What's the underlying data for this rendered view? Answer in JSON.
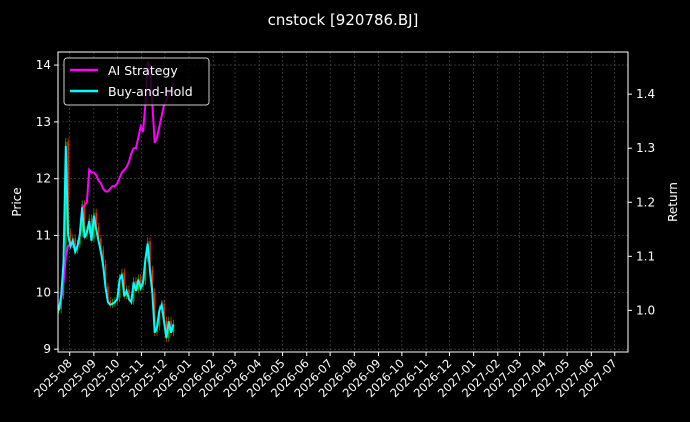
{
  "chart_data": {
    "type": "line",
    "title": "cnstock [920786.BJ]",
    "ylabel": "Price",
    "y2label": "Return",
    "ylim": [
      8.95,
      14.23
    ],
    "y2lim": [
      0.923,
      1.478
    ],
    "yticks": [
      9,
      10,
      11,
      12,
      13,
      14
    ],
    "y2ticks": [
      "1.0",
      "1.1",
      "1.2",
      "1.3",
      "1.4"
    ],
    "xlim": [
      "2025-07-17",
      "2027-07-18"
    ],
    "xticks": [
      "2025-08",
      "2025-09",
      "2025-10",
      "2025-11",
      "2025-12",
      "2026-01",
      "2026-02",
      "2026-03",
      "2026-04",
      "2026-05",
      "2026-06",
      "2026-07",
      "2026-08",
      "2026-09",
      "2026-10",
      "2026-11",
      "2026-12",
      "2027-01",
      "2027-02",
      "2027-03",
      "2027-04",
      "2027-05",
      "2027-06",
      "2027-07"
    ],
    "grid": true,
    "legend_position": "top-left",
    "colors": {
      "background": "#000000",
      "ai_strategy": "#ff00ff",
      "buy_and_hold": "#00ffff",
      "candle_up": "#00b000",
      "candle_down": "#ff2000",
      "grid": "#555555"
    },
    "start_date": "2025-07-18",
    "date_step_days": 3,
    "price_close": [
      9.7,
      9.95,
      10.55,
      12.65,
      11.05,
      10.85,
      10.95,
      10.75,
      10.85,
      11.05,
      11.55,
      11.0,
      11.1,
      11.3,
      10.95,
      11.4,
      11.15,
      10.95,
      10.75,
      10.5,
      10.1,
      9.85,
      9.8,
      9.82,
      9.85,
      9.9,
      10.25,
      10.35,
      9.95,
      10.05,
      9.9,
      9.85,
      10.2,
      10.05,
      10.25,
      10.1,
      10.2,
      10.6,
      10.9,
      10.4,
      10.0,
      9.3,
      9.4,
      9.7,
      9.8,
      9.5,
      9.2,
      9.5,
      9.3,
      9.45
    ],
    "series": [
      {
        "name": "AI Strategy",
        "axis": "right",
        "values": [
          1.0,
          1.02,
          1.05,
          1.1,
          1.12,
          1.12,
          1.125,
          1.11,
          1.12,
          1.14,
          1.19,
          1.195,
          1.2,
          1.26,
          1.255,
          1.255,
          1.25,
          1.24,
          1.235,
          1.225,
          1.22,
          1.22,
          1.225,
          1.23,
          1.23,
          1.235,
          1.245,
          1.255,
          1.26,
          1.265,
          1.275,
          1.29,
          1.3,
          1.3,
          1.32,
          1.34,
          1.33,
          1.38,
          1.46,
          1.45,
          1.38,
          1.31,
          1.32,
          1.34,
          1.36,
          1.38,
          1.39,
          1.4,
          1.41,
          1.42
        ]
      },
      {
        "name": "Buy-and-Hold",
        "axis": "right",
        "base_price": 9.7
      }
    ]
  }
}
